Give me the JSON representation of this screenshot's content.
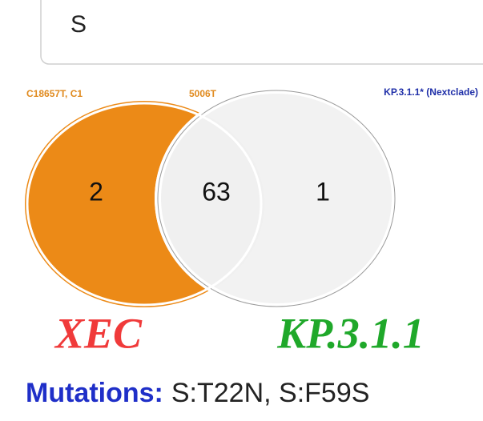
{
  "search": {
    "value": "S"
  },
  "venn": {
    "left_label_parts": [
      "C18657T, C1",
      "5006T"
    ],
    "right_label": "KP.3.1.1* (Nextclade)",
    "regions": {
      "left_only": "2",
      "both": "63",
      "right_only": "1"
    }
  },
  "names": {
    "left": "XEC",
    "right": "KP.3.1.1"
  },
  "mutations": {
    "label": "Mutations:",
    "text": "S:T22N, S:F59S"
  }
}
